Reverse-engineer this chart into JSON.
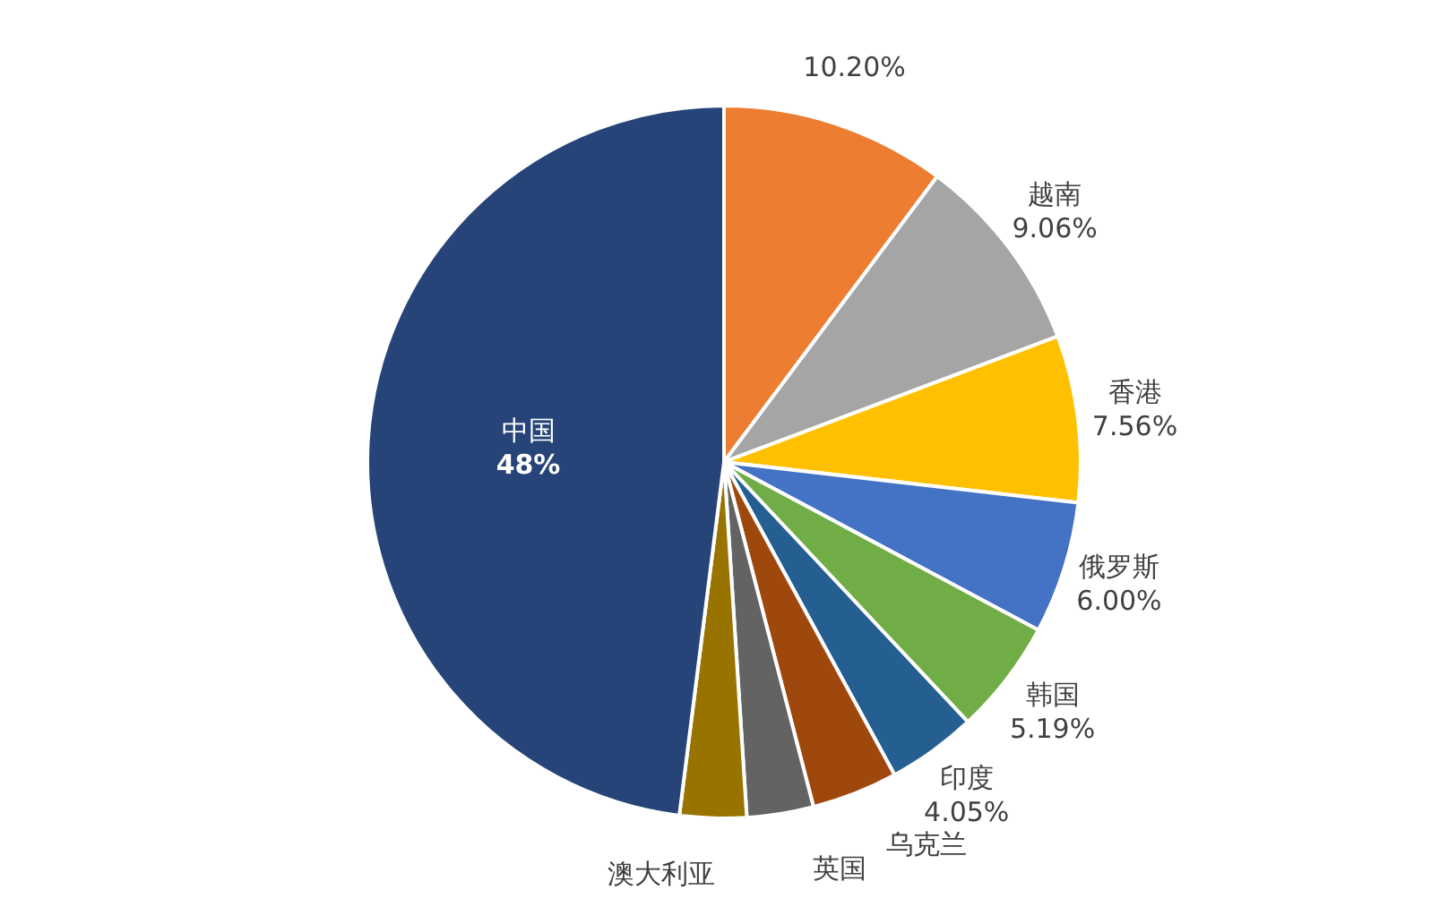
{
  "chart_data": {
    "type": "pie",
    "categories": [
      null,
      "越南",
      "香港",
      "俄罗斯",
      "韩国",
      "印度",
      "乌克兰",
      "英国",
      "澳大利亚",
      "中国"
    ],
    "values": [
      10.2,
      9.06,
      7.56,
      6.0,
      5.19,
      4.05,
      3.9,
      3.02,
      3.02,
      48
    ],
    "value_labels": [
      "10.20%",
      "9.06%",
      "7.56%",
      "6.00%",
      "5.19%",
      "4.05%",
      null,
      null,
      null,
      "48%"
    ],
    "colors": [
      "#ed7d31",
      "#a5a5a5",
      "#ffc000",
      "#4472c4",
      "#70ad47",
      "#255e91",
      "#9e480e",
      "#636363",
      "#997300",
      "#264478"
    ],
    "legend": false
  }
}
